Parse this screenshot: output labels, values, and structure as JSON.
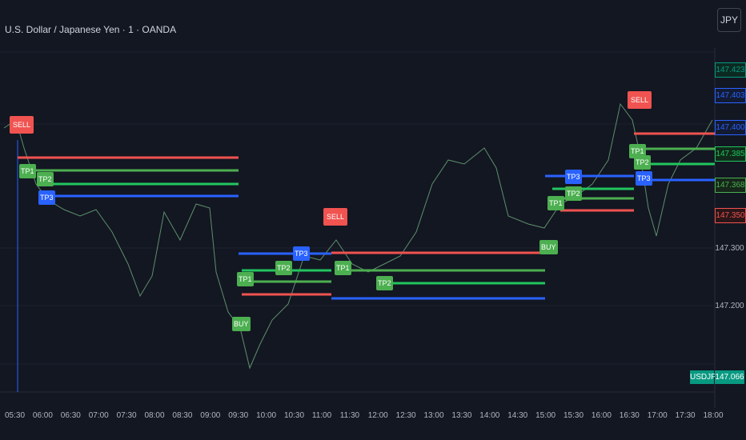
{
  "header": {
    "title": "U.S. Dollar / Japanese Yen · 1 · OANDA",
    "currency_button": "JPY"
  },
  "price_axis": {
    "labels": [
      "147.423",
      "147.403",
      "147.400",
      "147.385",
      "147.368",
      "147.350",
      "147.300",
      "147.200"
    ],
    "symbol": "USDJPY",
    "last_price": "147.066"
  },
  "time_axis": {
    "labels": [
      "05:30",
      "06:00",
      "06:30",
      "07:00",
      "07:30",
      "08:00",
      "08:30",
      "09:00",
      "09:30",
      "10:00",
      "10:30",
      "11:00",
      "11:30",
      "12:00",
      "12:30",
      "13:00",
      "13:30",
      "14:00",
      "14:30",
      "15:00",
      "15:30",
      "16:00",
      "16:30",
      "17:00",
      "17:30",
      "18:00"
    ]
  },
  "signals": [
    "SELL",
    "TP1",
    "TP2",
    "TP3",
    "BUY",
    "TP1",
    "TP2",
    "TP3",
    "SELL",
    "TP1",
    "TP2",
    "BUY",
    "TP1",
    "TP2",
    "TP3",
    "SELL",
    "TP1",
    "TP2",
    "TP3"
  ]
}
